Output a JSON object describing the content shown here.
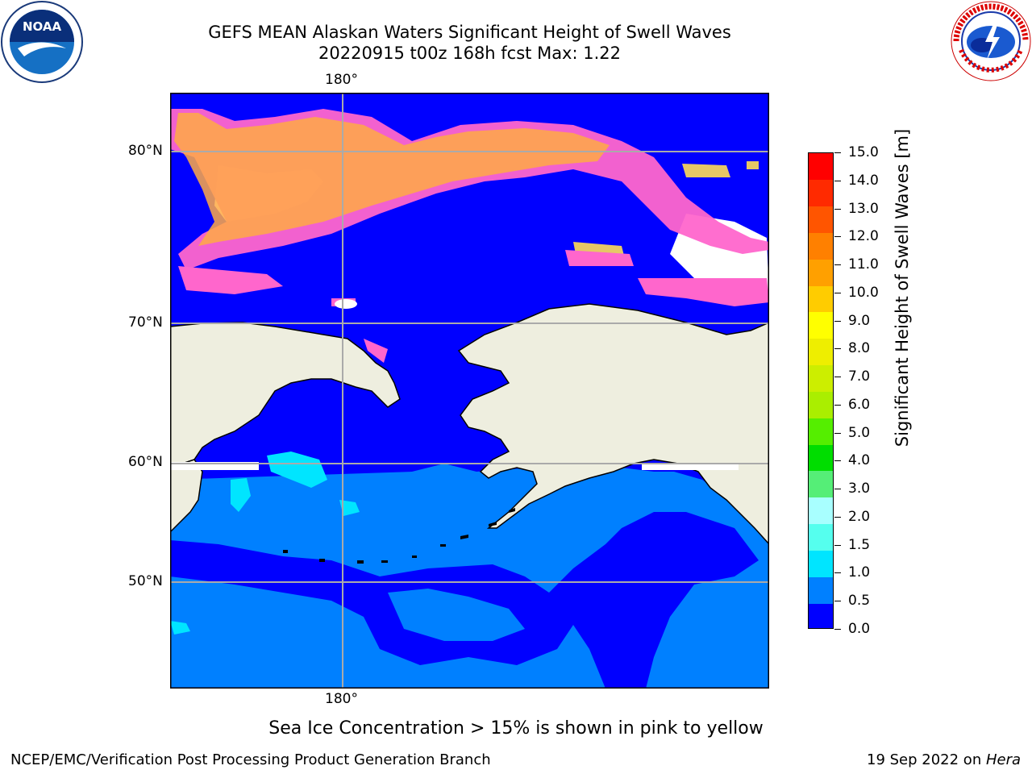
{
  "title": {
    "line1": "GEFS MEAN Alaskan Waters Significant Height of Swell Waves",
    "line2": "20220915 t00z 168h fcst   Max: 1.22"
  },
  "logos": {
    "left": {
      "icon": "noaa-logo-icon",
      "text": "NOAA"
    },
    "right": {
      "icon": "national-weather-service-logo-icon"
    }
  },
  "map": {
    "lon_label_top": "180°",
    "lon_label_bottom": "180°",
    "lat_labels": [
      "80°N",
      "70°N",
      "60°N",
      "50°N"
    ],
    "colors": {
      "ocean_low": "#0000ff",
      "ocean_mid": "#0080ff",
      "cyan": "#00ffff",
      "land": "#eeeedf",
      "ice_pink": "#ff66cc",
      "ice_orange": "#ffaa44",
      "ice_yellow": "#ffdd55",
      "grid": "#aaaaaa"
    }
  },
  "colorbar": {
    "title": "Significant Height of Swell Waves [m]",
    "ticks": [
      "15.0",
      "14.0",
      "13.0",
      "12.0",
      "11.0",
      "10.0",
      "9.0",
      "8.0",
      "7.0",
      "6.0",
      "5.0",
      "4.0",
      "3.0",
      "2.0",
      "1.5",
      "1.0",
      "0.5",
      "0.0"
    ],
    "colors": [
      "#0000ff",
      "#0080ff",
      "#00e5ff",
      "#55ffee",
      "#a8ffff",
      "#55ee77",
      "#00dd00",
      "#55ee00",
      "#aaee00",
      "#ccee00",
      "#eeee00",
      "#ffff00",
      "#ffcc00",
      "#ffa000",
      "#ff8000",
      "#ff5500",
      "#ff2a00",
      "#ff0000"
    ]
  },
  "note": "Sea Ice Concentration > 15% is shown in pink to yellow",
  "footer": {
    "left": "NCEP/EMC/Verification Post Processing Product Generation Branch",
    "right_date": "19 Sep 2022 on ",
    "right_host": "Hera"
  }
}
